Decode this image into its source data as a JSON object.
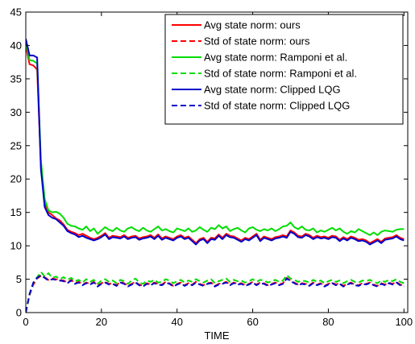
{
  "chart_data": {
    "type": "line",
    "title": "",
    "xlabel": "TIME",
    "ylabel": "",
    "xlim": [
      0,
      101
    ],
    "ylim": [
      0,
      45
    ],
    "x_ticks": [
      0,
      20,
      40,
      60,
      80,
      100
    ],
    "y_ticks": [
      0,
      5,
      10,
      15,
      20,
      25,
      30,
      35,
      40,
      45
    ],
    "grid": false,
    "legend_position": "top-right",
    "series": [
      {
        "name": "Avg state norm: ours",
        "color": "#ff0000",
        "dash": "solid",
        "x": [
          0,
          1,
          2,
          3,
          4,
          5,
          6,
          7,
          8,
          9,
          10,
          11,
          12,
          13,
          14,
          15,
          16,
          17,
          18,
          19,
          20,
          21,
          22,
          23,
          24,
          25,
          26,
          27,
          28,
          29,
          30,
          31,
          32,
          33,
          34,
          35,
          36,
          37,
          38,
          39,
          40,
          41,
          42,
          43,
          44,
          45,
          46,
          47,
          48,
          49,
          50,
          51,
          52,
          53,
          54,
          55,
          56,
          57,
          58,
          59,
          60,
          61,
          62,
          63,
          64,
          65,
          66,
          67,
          68,
          69,
          70,
          71,
          72,
          73,
          74,
          75,
          76,
          77,
          78,
          79,
          80,
          81,
          82,
          83,
          84,
          85,
          86,
          87,
          88,
          89,
          90,
          91,
          92,
          93,
          94,
          95,
          96,
          97,
          98,
          99,
          100
        ],
        "y": [
          40.0,
          37.2,
          37.0,
          36.4,
          22.0,
          16.3,
          15.0,
          14.6,
          14.1,
          13.8,
          13.2,
          12.4,
          12.1,
          11.9,
          11.6,
          11.8,
          11.5,
          11.2,
          11.0,
          11.2,
          11.5,
          11.9,
          11.2,
          11.5,
          11.4,
          11.3,
          11.6,
          11.2,
          11.4,
          11.5,
          11.1,
          11.3,
          11.4,
          11.6,
          11.2,
          11.7,
          11.1,
          11.4,
          11.2,
          11.0,
          11.4,
          11.6,
          11.2,
          11.4,
          10.9,
          10.4,
          11.0,
          11.2,
          10.6,
          11.2,
          11.1,
          11.7,
          11.2,
          11.8,
          11.5,
          11.4,
          11.1,
          10.8,
          11.2,
          11.0,
          11.4,
          11.8,
          10.9,
          11.4,
          11.2,
          11.0,
          11.3,
          11.4,
          11.6,
          11.4,
          12.3,
          12.0,
          11.5,
          11.4,
          11.8,
          11.6,
          11.2,
          11.5,
          11.3,
          11.4,
          11.2,
          11.5,
          11.4,
          10.9,
          11.3,
          11.0,
          11.4,
          11.2,
          10.9,
          11.0,
          10.8,
          10.4,
          10.7,
          11.0,
          10.6,
          11.1,
          11.2,
          11.3,
          11.6,
          11.2,
          11.0
        ]
      },
      {
        "name": "Std of state norm: ours",
        "color": "#ff0000",
        "dash": "dashed",
        "x": [
          0,
          1,
          2,
          3,
          4,
          5,
          6,
          7,
          8,
          9,
          10,
          11,
          12,
          13,
          14,
          15,
          16,
          17,
          18,
          19,
          20,
          21,
          22,
          23,
          24,
          25,
          26,
          27,
          28,
          29,
          30,
          31,
          32,
          33,
          34,
          35,
          36,
          37,
          38,
          39,
          40,
          41,
          42,
          43,
          44,
          45,
          46,
          47,
          48,
          49,
          50,
          51,
          52,
          53,
          54,
          55,
          56,
          57,
          58,
          59,
          60,
          61,
          62,
          63,
          64,
          65,
          66,
          67,
          68,
          69,
          70,
          71,
          72,
          73,
          74,
          75,
          76,
          77,
          78,
          79,
          80,
          81,
          82,
          83,
          84,
          85,
          86,
          87,
          88,
          89,
          90,
          91,
          92,
          93,
          94,
          95,
          96,
          97,
          98,
          99,
          100
        ],
        "y": [
          0.0,
          2.6,
          4.2,
          5.1,
          5.5,
          5.3,
          4.9,
          5.1,
          5.0,
          4.9,
          4.8,
          4.5,
          4.9,
          4.4,
          4.6,
          4.2,
          4.5,
          4.3,
          4.6,
          4.0,
          4.4,
          4.6,
          4.3,
          4.4,
          4.1,
          4.6,
          4.4,
          4.0,
          4.3,
          4.6,
          4.2,
          4.0,
          4.4,
          4.2,
          4.5,
          4.3,
          4.2,
          4.6,
          4.4,
          4.0,
          4.3,
          4.5,
          4.1,
          4.4,
          4.2,
          4.6,
          4.3,
          4.1,
          4.4,
          4.5,
          4.0,
          4.3,
          4.4,
          4.6,
          4.2,
          4.5,
          4.3,
          4.4,
          4.1,
          4.3,
          4.6,
          4.2,
          4.5,
          4.4,
          4.1,
          4.3,
          4.5,
          4.2,
          4.4,
          5.2,
          4.8,
          4.5,
          4.2,
          4.4,
          4.3,
          4.1,
          4.5,
          4.2,
          4.4,
          4.0,
          4.3,
          4.5,
          4.2,
          4.4,
          4.0,
          4.3,
          4.5,
          4.2,
          4.1,
          4.4,
          4.3,
          4.5,
          4.2,
          4.0,
          4.4,
          4.2,
          4.5,
          4.3,
          4.6,
          4.2,
          4.0
        ]
      },
      {
        "name": "Avg state norm: Ramponi et al.",
        "color": "#00dd00",
        "dash": "solid",
        "x": [
          0,
          1,
          2,
          3,
          4,
          5,
          6,
          7,
          8,
          9,
          10,
          11,
          12,
          13,
          14,
          15,
          16,
          17,
          18,
          19,
          20,
          21,
          22,
          23,
          24,
          25,
          26,
          27,
          28,
          29,
          30,
          31,
          32,
          33,
          34,
          35,
          36,
          37,
          38,
          39,
          40,
          41,
          42,
          43,
          44,
          45,
          46,
          47,
          48,
          49,
          50,
          51,
          52,
          53,
          54,
          55,
          56,
          57,
          58,
          59,
          60,
          61,
          62,
          63,
          64,
          65,
          66,
          67,
          68,
          69,
          70,
          71,
          72,
          73,
          74,
          75,
          76,
          77,
          78,
          79,
          80,
          81,
          82,
          83,
          84,
          85,
          86,
          87,
          88,
          89,
          90,
          91,
          92,
          93,
          94,
          95,
          96,
          97,
          98,
          99,
          100
        ],
        "y": [
          40.5,
          37.8,
          37.7,
          37.3,
          22.8,
          17.0,
          15.3,
          15.0,
          15.1,
          14.8,
          14.2,
          13.3,
          13.0,
          12.9,
          12.6,
          12.4,
          12.9,
          12.2,
          12.6,
          11.8,
          12.3,
          12.8,
          12.4,
          12.2,
          12.7,
          12.3,
          12.1,
          12.6,
          12.8,
          12.4,
          12.2,
          12.7,
          12.3,
          12.1,
          12.5,
          12.9,
          12.3,
          12.5,
          12.2,
          12.0,
          12.6,
          12.4,
          12.2,
          12.6,
          12.1,
          12.3,
          12.8,
          12.4,
          12.1,
          12.7,
          12.5,
          13.1,
          12.6,
          12.9,
          12.2,
          12.5,
          12.7,
          12.3,
          12.0,
          12.6,
          12.8,
          12.4,
          12.2,
          12.5,
          12.3,
          12.6,
          12.2,
          12.5,
          12.9,
          13.0,
          13.5,
          12.8,
          12.5,
          12.9,
          12.4,
          12.3,
          12.6,
          12.0,
          12.3,
          12.1,
          12.4,
          12.7,
          12.3,
          12.6,
          12.1,
          11.8,
          12.2,
          12.0,
          12.5,
          12.2,
          11.9,
          11.6,
          12.0,
          11.6,
          12.1,
          12.3,
          12.2,
          12.1,
          12.4,
          12.5,
          12.5
        ]
      },
      {
        "name": "Std of state norm: Ramponi et al.",
        "color": "#00dd00",
        "dash": "dashed",
        "x": [
          0,
          1,
          2,
          3,
          4,
          5,
          6,
          7,
          8,
          9,
          10,
          11,
          12,
          13,
          14,
          15,
          16,
          17,
          18,
          19,
          20,
          21,
          22,
          23,
          24,
          25,
          26,
          27,
          28,
          29,
          30,
          31,
          32,
          33,
          34,
          35,
          36,
          37,
          38,
          39,
          40,
          41,
          42,
          43,
          44,
          45,
          46,
          47,
          48,
          49,
          50,
          51,
          52,
          53,
          54,
          55,
          56,
          57,
          58,
          59,
          60,
          61,
          62,
          63,
          64,
          65,
          66,
          67,
          68,
          69,
          70,
          71,
          72,
          73,
          74,
          75,
          76,
          77,
          78,
          79,
          80,
          81,
          82,
          83,
          84,
          85,
          86,
          87,
          88,
          89,
          90,
          91,
          92,
          93,
          94,
          95,
          96,
          97,
          98,
          99,
          100
        ],
        "y": [
          0.0,
          2.7,
          4.4,
          5.3,
          6.1,
          5.4,
          5.9,
          5.2,
          5.4,
          5.0,
          5.3,
          4.9,
          5.2,
          4.7,
          4.9,
          4.5,
          5.0,
          4.6,
          4.9,
          4.3,
          4.8,
          5.0,
          4.6,
          4.8,
          4.4,
          4.9,
          4.7,
          4.3,
          4.8,
          5.1,
          4.5,
          4.3,
          4.8,
          4.6,
          4.9,
          4.5,
          4.6,
          5.0,
          4.8,
          4.4,
          4.7,
          4.9,
          4.5,
          4.8,
          4.6,
          5.0,
          4.7,
          4.5,
          4.8,
          5.0,
          4.4,
          4.7,
          4.9,
          5.1,
          4.6,
          4.9,
          4.7,
          4.8,
          4.5,
          4.7,
          5.0,
          4.6,
          4.9,
          4.8,
          4.5,
          4.7,
          4.9,
          4.6,
          4.8,
          5.6,
          5.1,
          4.9,
          4.6,
          4.8,
          4.7,
          4.5,
          4.9,
          4.6,
          4.8,
          4.4,
          4.7,
          4.9,
          4.6,
          4.8,
          4.4,
          4.7,
          4.9,
          4.6,
          4.5,
          4.8,
          4.7,
          4.9,
          4.6,
          4.4,
          4.8,
          4.6,
          4.9,
          4.7,
          5.0,
          4.6,
          4.4
        ]
      },
      {
        "name": "Avg state norm: Clipped LQG",
        "color": "#0000cc",
        "dash": "solid",
        "x": [
          0,
          1,
          2,
          3,
          4,
          5,
          6,
          7,
          8,
          9,
          10,
          11,
          12,
          13,
          14,
          15,
          16,
          17,
          18,
          19,
          20,
          21,
          22,
          23,
          24,
          25,
          26,
          27,
          28,
          29,
          30,
          31,
          32,
          33,
          34,
          35,
          36,
          37,
          38,
          39,
          40,
          41,
          42,
          43,
          44,
          45,
          46,
          47,
          48,
          49,
          50,
          51,
          52,
          53,
          54,
          55,
          56,
          57,
          58,
          59,
          60,
          61,
          62,
          63,
          64,
          65,
          66,
          67,
          68,
          69,
          70,
          71,
          72,
          73,
          74,
          75,
          76,
          77,
          78,
          79,
          80,
          81,
          82,
          83,
          84,
          85,
          86,
          87,
          88,
          89,
          90,
          91,
          92,
          93,
          94,
          95,
          96,
          97,
          98,
          99,
          100
        ],
        "y": [
          41.0,
          38.5,
          38.5,
          38.2,
          21.5,
          15.8,
          14.6,
          14.2,
          14.0,
          13.5,
          13.0,
          12.2,
          11.9,
          11.7,
          11.3,
          11.5,
          11.2,
          11.0,
          10.8,
          11.0,
          11.3,
          11.7,
          11.0,
          11.3,
          11.2,
          11.1,
          11.4,
          11.0,
          11.2,
          11.3,
          10.9,
          11.1,
          11.2,
          11.4,
          11.0,
          11.5,
          10.9,
          11.2,
          11.0,
          10.8,
          11.2,
          11.4,
          11.0,
          11.2,
          10.7,
          10.2,
          10.8,
          11.0,
          10.4,
          11.0,
          10.9,
          11.5,
          11.0,
          11.6,
          11.3,
          11.2,
          10.9,
          10.6,
          11.0,
          10.8,
          11.2,
          11.6,
          10.7,
          11.2,
          11.0,
          10.8,
          11.1,
          11.2,
          11.4,
          11.2,
          12.1,
          11.8,
          11.3,
          11.2,
          11.6,
          11.4,
          11.0,
          11.3,
          11.1,
          11.2,
          11.0,
          11.3,
          11.2,
          10.7,
          11.1,
          10.8,
          11.2,
          11.0,
          10.7,
          10.8,
          10.6,
          10.2,
          10.5,
          10.8,
          10.4,
          10.9,
          11.0,
          11.1,
          11.4,
          11.0,
          10.8
        ]
      },
      {
        "name": "Std of state norm: Clipped LQG",
        "color": "#0000cc",
        "dash": "dashed",
        "x": [
          0,
          1,
          2,
          3,
          4,
          5,
          6,
          7,
          8,
          9,
          10,
          11,
          12,
          13,
          14,
          15,
          16,
          17,
          18,
          19,
          20,
          21,
          22,
          23,
          24,
          25,
          26,
          27,
          28,
          29,
          30,
          31,
          32,
          33,
          34,
          35,
          36,
          37,
          38,
          39,
          40,
          41,
          42,
          43,
          44,
          45,
          46,
          47,
          48,
          49,
          50,
          51,
          52,
          53,
          54,
          55,
          56,
          57,
          58,
          59,
          60,
          61,
          62,
          63,
          64,
          65,
          66,
          67,
          68,
          69,
          70,
          71,
          72,
          73,
          74,
          75,
          76,
          77,
          78,
          79,
          80,
          81,
          82,
          83,
          84,
          85,
          86,
          87,
          88,
          89,
          90,
          91,
          92,
          93,
          94,
          95,
          96,
          97,
          98,
          99,
          100
        ],
        "y": [
          0.0,
          2.8,
          4.5,
          5.2,
          5.6,
          5.2,
          4.8,
          5.0,
          4.9,
          4.8,
          4.7,
          4.4,
          4.8,
          4.3,
          4.5,
          4.1,
          4.4,
          4.2,
          4.5,
          3.9,
          4.3,
          4.5,
          4.2,
          4.3,
          4.0,
          4.5,
          4.3,
          3.9,
          4.2,
          4.5,
          4.1,
          3.9,
          4.3,
          4.1,
          4.4,
          4.2,
          4.1,
          4.5,
          4.3,
          3.9,
          4.2,
          4.4,
          4.0,
          4.3,
          4.1,
          4.5,
          4.2,
          4.0,
          4.3,
          4.4,
          3.9,
          4.2,
          4.3,
          4.5,
          4.1,
          4.4,
          4.2,
          4.3,
          4.0,
          4.2,
          4.5,
          4.1,
          4.4,
          4.3,
          4.0,
          4.2,
          4.4,
          4.1,
          4.3,
          5.1,
          4.7,
          4.4,
          4.1,
          4.3,
          4.2,
          4.0,
          4.4,
          4.1,
          4.3,
          3.9,
          4.2,
          4.4,
          4.1,
          4.3,
          3.9,
          4.2,
          4.4,
          4.1,
          4.0,
          4.3,
          4.2,
          4.4,
          4.1,
          3.9,
          4.3,
          4.1,
          4.4,
          4.2,
          4.5,
          4.1,
          3.9
        ]
      }
    ]
  }
}
